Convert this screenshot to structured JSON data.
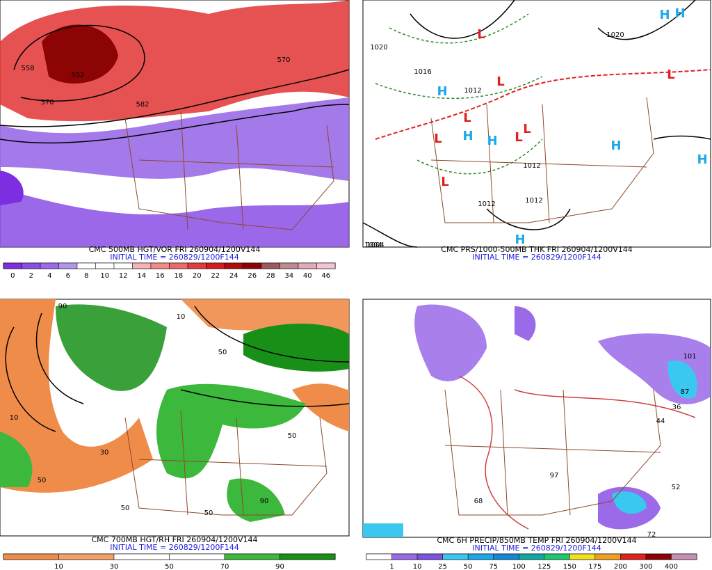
{
  "panels": [
    {
      "caption": "CMC 500MB HGT/VOR FRI 260904/1200V144",
      "initial": "INITIAL TIME = 260829/1200F144",
      "colorbar": {
        "colors": [
          "#7d2ee0",
          "#8a4ee6",
          "#9a6ae8",
          "#b295ee",
          "#ffffff",
          "#ffffff",
          "#ffffff",
          "#f7b3b3",
          "#f28a8a",
          "#ee6a6a",
          "#e33a3a",
          "#d21c1c",
          "#b00c0c",
          "#8c0404",
          "#a0585c",
          "#c08890",
          "#e0aab6",
          "#f5c4d0"
        ],
        "labels": [
          0,
          2,
          4,
          6,
          8,
          10,
          12,
          14,
          16,
          18,
          20,
          22,
          24,
          26,
          28,
          34,
          40,
          46
        ]
      },
      "map_labels": [
        "558",
        "552",
        "570",
        "582",
        "570"
      ]
    },
    {
      "caption": "CMC PRS/1000-500MB THK FRI 260904/1200V144",
      "initial": "INITIAL TIME = 260829/1200F144",
      "map_labels": [
        "1020",
        "1016",
        "1012",
        "1012",
        "1012",
        "1012",
        "1020",
        "1004",
        "1004"
      ],
      "highs": [
        "H",
        "H",
        "H",
        "H",
        "H",
        "H",
        "H",
        "H"
      ],
      "lows": [
        "L",
        "L",
        "L",
        "L",
        "L",
        "L",
        "L",
        "L"
      ]
    },
    {
      "caption": "CMC 700MB HGT/RH FRI 260904/1200V144",
      "initial": "INITIAL TIME = 260829/1200F144",
      "colorbar": {
        "colors": [
          "#f08c4a",
          "#f5a066",
          "#ffffff",
          "#ffffff",
          "#3cb83c",
          "#189018"
        ],
        "labels": [
          10,
          30,
          50,
          70,
          90
        ]
      },
      "map_labels": [
        "90",
        "50",
        "10",
        "30",
        "50",
        "50",
        "90",
        "50",
        "10",
        "50"
      ]
    },
    {
      "caption": "CMC 6H PRECIP/850MB TEMP FRI 260904/1200V144",
      "initial": "INITIAL TIME = 260829/1200F144",
      "colorbar": {
        "colors": [
          "#ffffff",
          "#9a6ae8",
          "#7c54e0",
          "#3ac8f0",
          "#1aa8e8",
          "#1488d8",
          "#10a8a0",
          "#1ec870",
          "#f0e020",
          "#f0a020",
          "#e02020",
          "#900000",
          "#c890b0"
        ],
        "labels": [
          1,
          10,
          25,
          50,
          75,
          100,
          125,
          150,
          175,
          200,
          300,
          400
        ]
      },
      "map_labels": [
        "87",
        "36",
        "44",
        "52",
        "68",
        "72",
        "97",
        "101"
      ]
    }
  ]
}
